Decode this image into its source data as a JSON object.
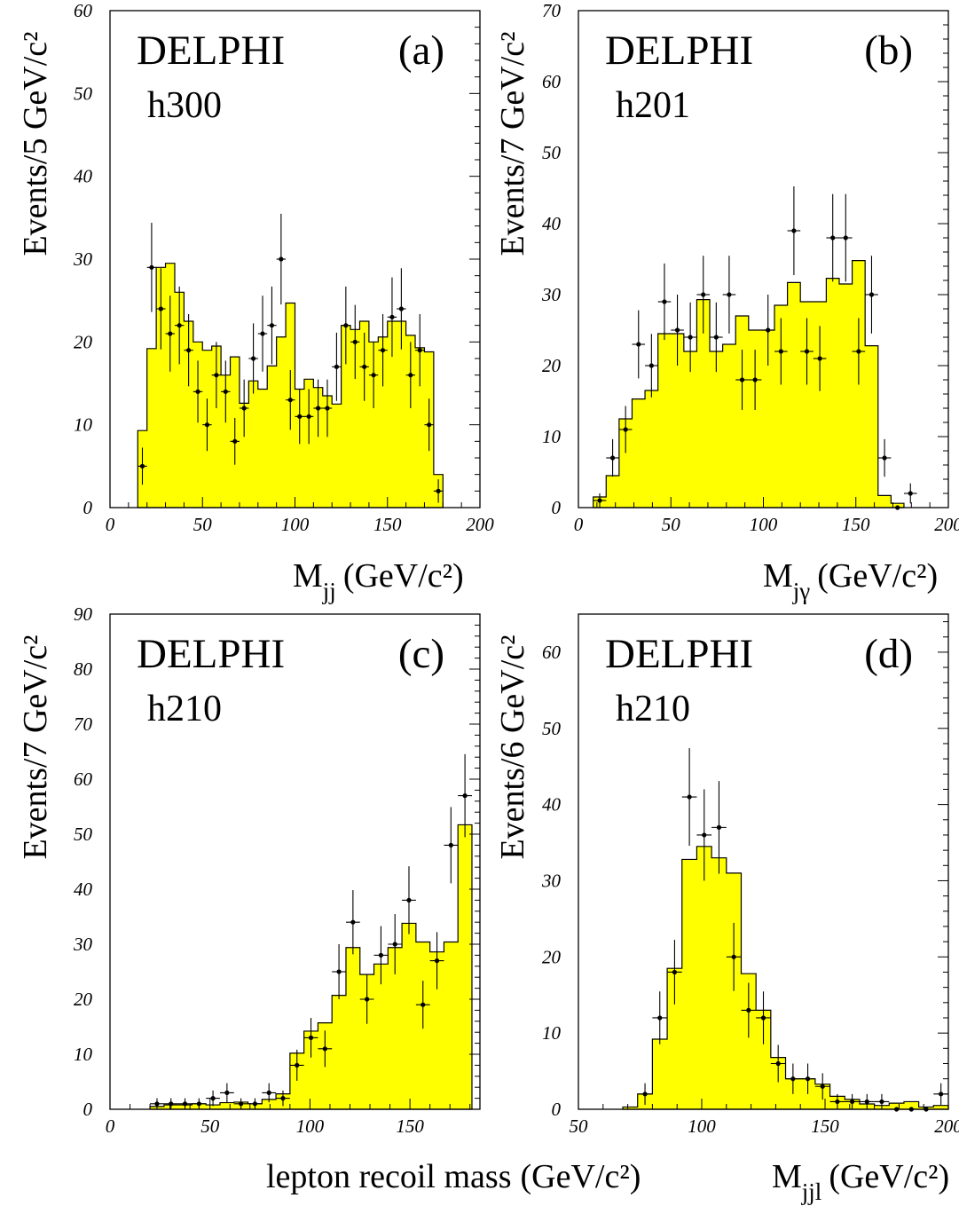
{
  "chart_data": [
    {
      "id": "a",
      "type": "bar",
      "experiment": "DELPHI",
      "panel_label": "(a)",
      "channel": "h300",
      "ylabel": "Events/5 GeV/c²",
      "xlabel_main": "M",
      "xlabel_sub": "jj",
      "xlabel_tail": "(GeV/c²)",
      "xlim": [
        0,
        200
      ],
      "ylim": [
        0,
        60
      ],
      "xticks": [
        0,
        50,
        100,
        150,
        200
      ],
      "yticks": [
        0,
        10,
        20,
        30,
        40,
        50,
        60
      ],
      "bin_width": 5,
      "series": [
        {
          "name": "simulation",
          "color": "#ffff00",
          "bin_edges": [
            15,
            20,
            25,
            30,
            35,
            40,
            45,
            50,
            55,
            60,
            65,
            70,
            75,
            80,
            85,
            90,
            95,
            100,
            105,
            110,
            115,
            120,
            125,
            130,
            135,
            140,
            145,
            150,
            155,
            160,
            165,
            170,
            175,
            180
          ],
          "values": [
            9.3,
            19.2,
            29,
            29.5,
            26,
            22.5,
            20,
            19,
            19.5,
            16,
            18.2,
            12.6,
            15.3,
            14.3,
            17.1,
            20.6,
            24.7,
            14.3,
            15.5,
            14.5,
            13.5,
            12.5,
            22,
            21.5,
            22.5,
            20,
            20.6,
            22.5,
            22.5,
            20.8,
            19.3,
            18.8,
            4
          ]
        },
        {
          "name": "data",
          "x": [
            17.5,
            22.5,
            27.5,
            32.5,
            37.5,
            42.5,
            47.5,
            52.5,
            57.5,
            62.5,
            67.5,
            72.5,
            77.5,
            82.5,
            87.5,
            92.5,
            97.5,
            102.5,
            107.5,
            112.5,
            117.5,
            122.5,
            127.5,
            132.5,
            137.5,
            142.5,
            147.5,
            152.5,
            157.5,
            162.5,
            167.5,
            172.5,
            177.5
          ],
          "y": [
            5,
            29,
            24,
            21,
            22,
            19,
            14,
            10,
            16,
            14,
            8,
            12,
            18,
            21,
            22,
            30,
            13,
            11,
            11,
            12,
            12,
            17,
            22,
            20,
            17,
            16,
            19,
            23,
            24,
            16,
            19,
            10,
            2
          ]
        }
      ]
    },
    {
      "id": "b",
      "type": "bar",
      "experiment": "DELPHI",
      "panel_label": "(b)",
      "channel": "h201",
      "ylabel": "Events/7 GeV/c²",
      "xlabel_main": "M",
      "xlabel_sub": "jγ",
      "xlabel_tail": "(GeV/c²)",
      "xlim": [
        0,
        200
      ],
      "ylim": [
        0,
        70
      ],
      "xticks": [
        0,
        50,
        100,
        150,
        200
      ],
      "yticks": [
        0,
        10,
        20,
        30,
        40,
        50,
        60,
        70
      ],
      "bin_width": 7,
      "series": [
        {
          "name": "simulation",
          "color": "#ffff00",
          "bin_edges": [
            8,
            15,
            22,
            29,
            36,
            43,
            50,
            57,
            64,
            71,
            78,
            85,
            92,
            99,
            106,
            113,
            120,
            127,
            134,
            141,
            148,
            155,
            162,
            169,
            176
          ],
          "values": [
            1.5,
            4.5,
            12.5,
            15.3,
            16.5,
            24.5,
            24.5,
            22,
            29.3,
            22,
            23,
            27,
            25,
            25,
            28.5,
            31.7,
            29,
            29,
            32.3,
            31.5,
            34.8,
            22.8,
            1.7,
            0.6
          ]
        },
        {
          "name": "data",
          "x": [
            11.5,
            18.5,
            25.5,
            32.5,
            39.5,
            46.5,
            53.5,
            60.5,
            67.5,
            74.5,
            81.5,
            88.5,
            95.5,
            102.5,
            109.5,
            116.5,
            123.5,
            130.5,
            137.5,
            144.5,
            151.5,
            158.5,
            165.5,
            172.5,
            179.5
          ],
          "y": [
            1,
            7,
            11,
            23,
            20,
            29,
            25,
            24,
            30,
            24,
            30,
            18,
            18,
            25,
            22,
            39,
            22,
            21,
            38,
            38,
            22,
            30,
            7,
            0,
            2
          ]
        }
      ]
    },
    {
      "id": "c",
      "type": "bar",
      "experiment": "DELPHI",
      "panel_label": "(c)",
      "channel": "h210",
      "ylabel": "Events/7 GeV/c²",
      "xlabel_main": "lepton recoil mass",
      "xlabel_sub": "",
      "xlabel_tail": "(GeV/c²)",
      "xlim": [
        0,
        185
      ],
      "ylim": [
        0,
        90
      ],
      "xticks": [
        0,
        50,
        100,
        150
      ],
      "yticks": [
        0,
        10,
        20,
        30,
        40,
        50,
        60,
        70,
        80,
        90
      ],
      "bin_width": 7,
      "series": [
        {
          "name": "simulation",
          "color": "#ffff00",
          "bin_edges": [
            20,
            27,
            34,
            41,
            48,
            55,
            62,
            69,
            76,
            83,
            90,
            97,
            104,
            111,
            118,
            125,
            132,
            139,
            146,
            153,
            160,
            167,
            174,
            181
          ],
          "values": [
            0.5,
            0.8,
            0.8,
            1,
            0.8,
            1.2,
            1.3,
            1,
            1.8,
            2.8,
            10.2,
            14.2,
            15.7,
            20.7,
            29.4,
            24.5,
            26.4,
            29.4,
            33.8,
            30.4,
            28.6,
            30.4,
            51.7
          ]
        },
        {
          "name": "data",
          "x": [
            23.5,
            30.5,
            37.5,
            44.5,
            51.5,
            58.5,
            65.5,
            72.5,
            79.5,
            86.5,
            93.5,
            100.5,
            107.5,
            114.5,
            121.5,
            128.5,
            135.5,
            142.5,
            149.5,
            156.5,
            163.5,
            170.5,
            177.5
          ],
          "y": [
            1,
            1,
            1,
            1,
            2,
            3,
            1,
            1,
            3,
            2,
            8,
            13,
            11,
            25,
            34,
            20,
            28,
            30,
            38,
            19,
            27,
            48,
            57
          ]
        }
      ]
    },
    {
      "id": "d",
      "type": "bar",
      "experiment": "DELPHI",
      "panel_label": "(d)",
      "channel": "h210",
      "ylabel": "Events/6 GeV/c²",
      "xlabel_main": "M",
      "xlabel_sub": "jjl",
      "xlabel_tail": "(GeV/c²)",
      "xlim": [
        50,
        200
      ],
      "ylim": [
        0,
        65
      ],
      "xticks": [
        50,
        100,
        150,
        200
      ],
      "yticks": [
        0,
        10,
        20,
        30,
        40,
        50,
        60
      ],
      "bin_width": 6,
      "series": [
        {
          "name": "simulation",
          "color": "#ffff00",
          "bin_edges": [
            68,
            74,
            80,
            86,
            92,
            98,
            104,
            110,
            116,
            122,
            128,
            134,
            140,
            146,
            152,
            158,
            164,
            170,
            176,
            182,
            188,
            194,
            200
          ],
          "values": [
            0.3,
            2,
            9.2,
            18.5,
            32.8,
            34.5,
            33,
            31,
            17.8,
            13,
            6.8,
            4,
            4,
            3.3,
            1.7,
            1.3,
            0.7,
            0.5,
            0.8,
            1,
            0.3,
            0.5
          ]
        },
        {
          "name": "data",
          "x": [
            77,
            83,
            89,
            95,
            101,
            107,
            113,
            119,
            125,
            131,
            137,
            143,
            149,
            155,
            161,
            167,
            173,
            179,
            185,
            191,
            197
          ],
          "y": [
            2,
            12,
            18,
            41,
            36,
            37,
            20,
            13,
            12,
            6,
            4,
            4,
            3,
            1,
            1,
            1,
            1,
            0,
            0,
            0,
            2
          ]
        }
      ]
    }
  ]
}
